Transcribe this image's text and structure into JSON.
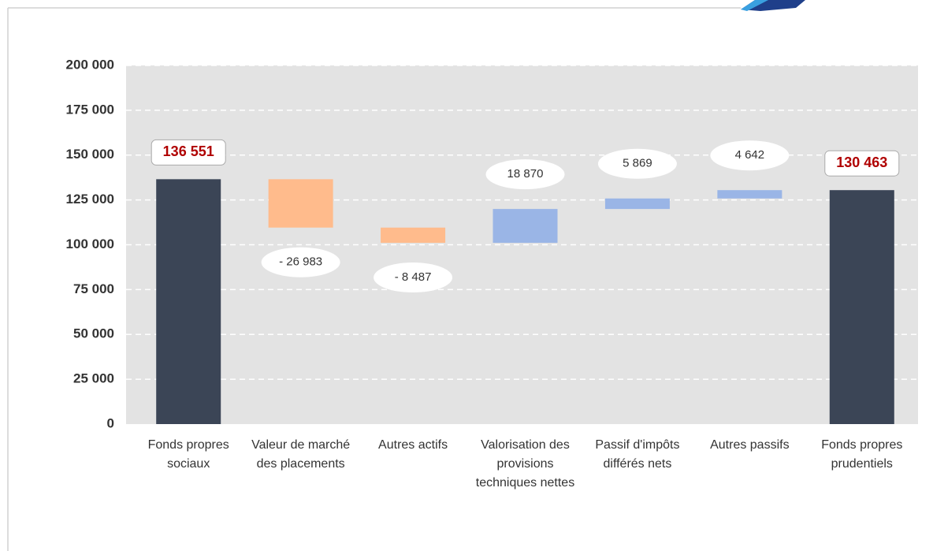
{
  "chart_data": {
    "type": "waterfall",
    "categories": [
      "Fonds propres sociaux",
      "Valeur de marché des placements",
      "Autres actifs",
      "Valorisation des provisions techniques nettes",
      "Passif d'impôts différés nets",
      "Autres passifs",
      "Fonds propres prudentiels"
    ],
    "values": [
      136551,
      -26983,
      -8487,
      18870,
      5869,
      4642,
      130463
    ],
    "value_labels": [
      "136 551",
      "- 26 983",
      "- 8 487",
      "18 870",
      "5 869",
      "4 642",
      "130 463"
    ],
    "measure": [
      "absolute",
      "relative",
      "relative",
      "relative",
      "relative",
      "relative",
      "total"
    ],
    "colors": {
      "total": "#3b4556",
      "decrease": "#ffbb8c",
      "increase": "#9ab5e6"
    },
    "ylim": [
      0,
      200000
    ],
    "yticks": [
      0,
      {
        "value": 25000,
        "label": "25 000"
      },
      {
        "value": 50000,
        "label": "50 000"
      },
      {
        "value": 75000,
        "label": "75 000"
      },
      {
        "value": 100000,
        "label": "100 000"
      },
      {
        "value": 125000,
        "label": "125 000"
      },
      {
        "value": 150000,
        "label": "150 000"
      },
      {
        "value": 175000,
        "label": "175 000"
      },
      {
        "value": 200000,
        "label": "200 000"
      }
    ],
    "grid": true
  }
}
